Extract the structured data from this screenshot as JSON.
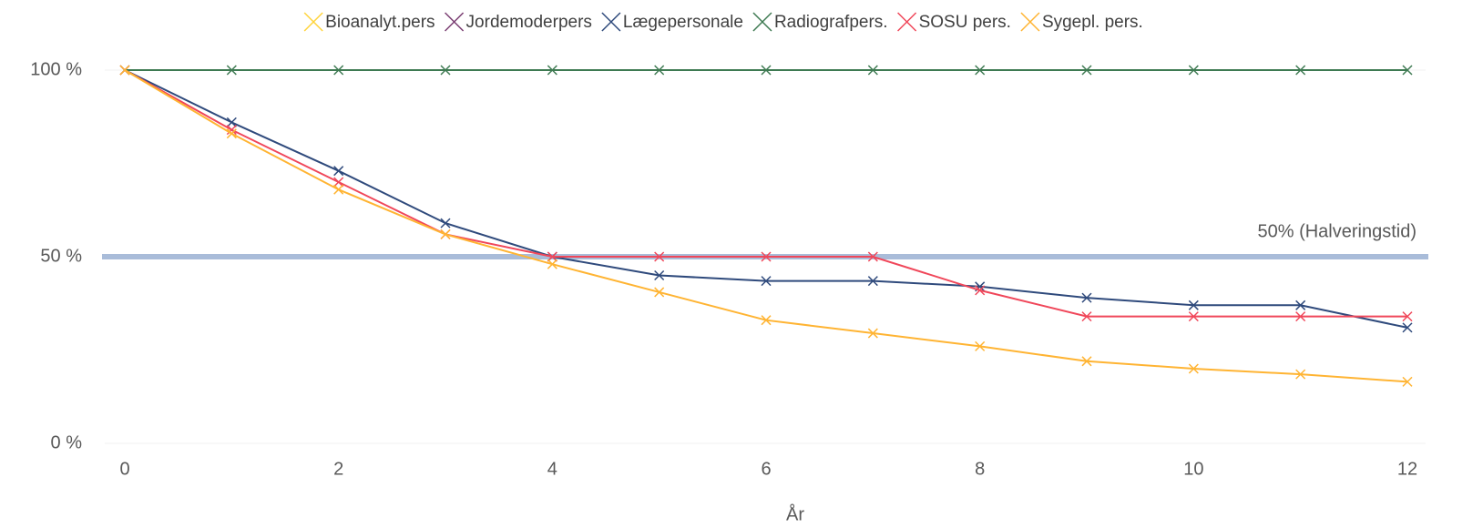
{
  "chart_data": {
    "type": "line",
    "x": [
      0,
      1,
      2,
      3,
      4,
      5,
      6,
      7,
      8,
      9,
      10,
      11,
      12
    ],
    "x_label": "År",
    "xlim": [
      0,
      12
    ],
    "xticks": [
      0,
      2,
      4,
      6,
      8,
      10,
      12
    ],
    "ylim": [
      0,
      100
    ],
    "yticks": [
      {
        "value": 0,
        "label": "0 %"
      },
      {
        "value": 50,
        "label": "50 %"
      },
      {
        "value": 100,
        "label": "100 %"
      }
    ],
    "legend": "top",
    "reference_line": {
      "value": 50,
      "label": "50% (Halveringstid)",
      "color": "#a9bcd9"
    },
    "series": [
      {
        "name": "Bioanalyt.pers",
        "color": "#ffd43b",
        "values": [
          null,
          null,
          null,
          null,
          null,
          null,
          null,
          null,
          null,
          null,
          null,
          null,
          null
        ]
      },
      {
        "name": "Jordemoderpers",
        "color": "#7b3f73",
        "values": [
          null,
          null,
          null,
          null,
          null,
          null,
          null,
          null,
          null,
          null,
          null,
          null,
          null
        ]
      },
      {
        "name": "Lægepersonale",
        "color": "#2f4a7c",
        "values": [
          100,
          86,
          73,
          59,
          50,
          45,
          43.5,
          43.5,
          42,
          39,
          37,
          37,
          31
        ]
      },
      {
        "name": "Radiografpers.",
        "color": "#3e7a52",
        "values": [
          100,
          100,
          100,
          100,
          100,
          100,
          100,
          100,
          100,
          100,
          100,
          100,
          100
        ]
      },
      {
        "name": "SOSU pers.",
        "color": "#f0475a",
        "values": [
          100,
          84,
          70,
          56,
          50,
          50,
          50,
          50,
          41,
          34,
          34,
          34,
          34
        ]
      },
      {
        "name": "Sygepl. pers.",
        "color": "#ffb433",
        "values": [
          100,
          83,
          68,
          56,
          48,
          40.5,
          33,
          29.5,
          26,
          22,
          20,
          18.5,
          16.5
        ]
      }
    ]
  }
}
